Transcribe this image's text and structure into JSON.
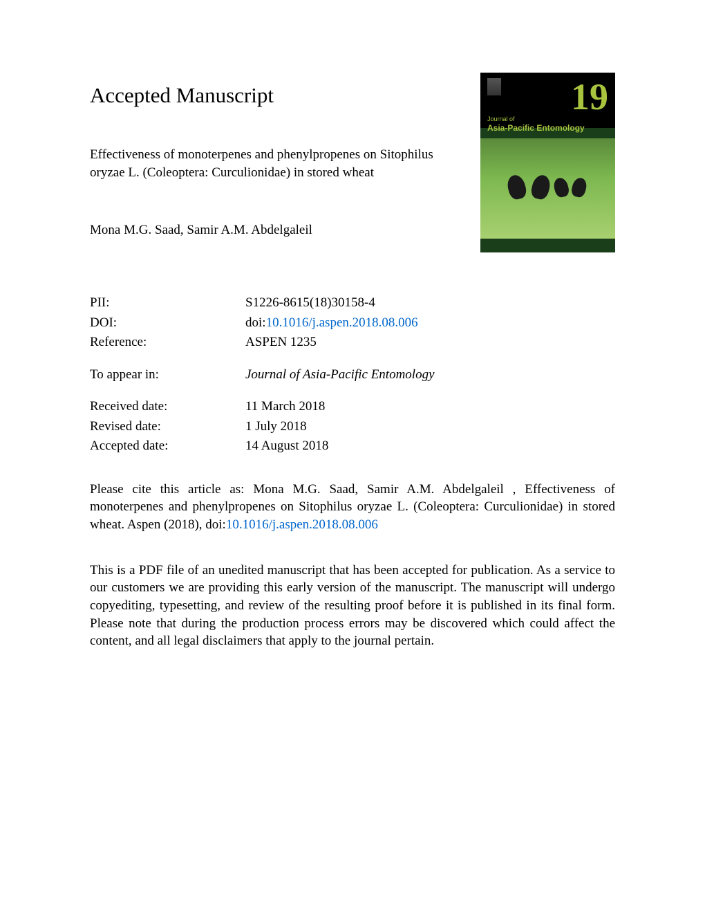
{
  "heading": "Accepted Manuscript",
  "title": "Effectiveness of monoterpenes and phenylpropenes on Sitophilus oryzae L. (Coleoptera: Curculionidae) in stored wheat",
  "authors": "Mona M.G. Saad, Samir A.M. Abdelgaleil",
  "metadata": {
    "pii_label": "PII:",
    "pii_value": "S1226-8615(18)30158-4",
    "doi_label": "DOI:",
    "doi_prefix": "doi:",
    "doi_link": "10.1016/j.aspen.2018.08.006",
    "reference_label": "Reference:",
    "reference_value": "ASPEN 1235",
    "appear_label": "To appear in:",
    "appear_value": "Journal of Asia-Pacific Entomology",
    "received_label": "Received date:",
    "received_value": "11 March 2018",
    "revised_label": "Revised date:",
    "revised_value": "1 July 2018",
    "accepted_label": "Accepted date:",
    "accepted_value": "14 August 2018"
  },
  "citation": {
    "prefix": "Please cite this article as: Mona M.G. Saad, Samir A.M. Abdelgaleil , Effectiveness of monoterpenes and phenylpropenes on Sitophilus oryzae L. (Coleoptera: Curculionidae) in stored wheat. Aspen (2018), doi:",
    "link": "10.1016/j.aspen.2018.08.006"
  },
  "disclaimer": "This is a PDF file of an unedited manuscript that has been accepted for publication. As a service to our customers we are providing this early version of the manuscript. The manuscript will undergo copyediting, typesetting, and review of the resulting proof before it is published in its final form. Please note that during the production process errors may be discovered which could affect the content, and all legal disclaimers that apply to the journal pertain.",
  "cover": {
    "volume": "19",
    "journal_prefix": "Journal of",
    "journal_main": "Asia-Pacific Entomology"
  },
  "colors": {
    "link": "#0066cc",
    "cover_accent": "#a8c43f",
    "cover_bg": "#1a3d1a"
  }
}
